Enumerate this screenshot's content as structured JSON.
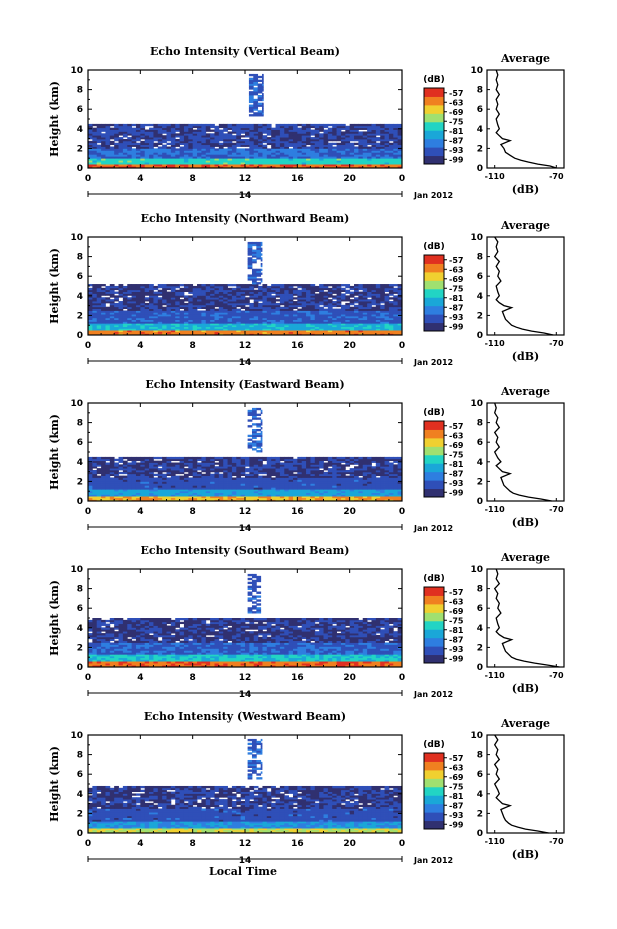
{
  "figure": {
    "xlabel": "Local Time",
    "date_label": "Jan 2012",
    "day_label": "14",
    "colorbar_unit": "(dB)",
    "average_title": "Average",
    "average_xlabel": "(dB)"
  },
  "chart_data": [
    {
      "type": "heatmap",
      "title": "Echo Intensity (Vertical Beam)",
      "xlabel": "Local Time",
      "ylabel": "Height (km)",
      "x_ticks": [
        "0",
        "4",
        "8",
        "12",
        "16",
        "20",
        "0"
      ],
      "xlim": [
        0,
        24
      ],
      "y_ticks": [
        "0",
        "2",
        "4",
        "6",
        "8",
        "10"
      ],
      "ylim": [
        0,
        10
      ],
      "colorbar": {
        "unit": "(dB)",
        "ticks": [
          "-57",
          "-63",
          "-69",
          "-75",
          "-81",
          "-87",
          "-93",
          "-99"
        ],
        "range": [
          -102,
          -54
        ]
      },
      "colors": [
        "#303070",
        "#2f4fb8",
        "#2e7ee0",
        "#1aa7d8",
        "#22d4c4",
        "#a0e070",
        "#f0d030",
        "#f08020",
        "#e03020"
      ],
      "field_summary": [
        {
          "height_km": [
            0.0,
            0.4
          ],
          "db": -60
        },
        {
          "height_km": [
            0.4,
            1.0
          ],
          "db": -78
        },
        {
          "height_km": [
            1.0,
            2.0
          ],
          "db": -91
        },
        {
          "height_km": [
            2.0,
            4.5
          ],
          "db": -96
        },
        {
          "height_km": [
            5.3,
            9.6
          ],
          "hours": [
            12.3,
            13.4
          ],
          "db": -93
        }
      ],
      "average": {
        "title": "Average",
        "xlabel": "(dB)",
        "x_ticks": [
          "-110",
          "-70"
        ],
        "xlim": [
          -115,
          -65
        ],
        "y_ticks": [
          "0",
          "2",
          "4",
          "6",
          "8",
          "10"
        ],
        "ylim": [
          0,
          10
        ],
        "profile": {
          "height": [
            0,
            0.2,
            0.4,
            0.6,
            0.8,
            1.0,
            1.3,
            1.6,
            2.0,
            2.4,
            2.8,
            3.0,
            3.3,
            3.6,
            4.0,
            4.4,
            5.0,
            5.5,
            6.0,
            6.5,
            7.0,
            7.5,
            8.0,
            8.5,
            9.0,
            9.5,
            10
          ],
          "db": [
            -70,
            -74,
            -82,
            -88,
            -93,
            -97,
            -100,
            -103,
            -104,
            -106,
            -100,
            -105,
            -107,
            -109,
            -107,
            -108,
            -109,
            -107,
            -109,
            -108,
            -109,
            -107,
            -109,
            -108,
            -109,
            -108,
            -109
          ]
        }
      }
    },
    {
      "type": "heatmap",
      "title": "Echo Intensity (Northward Beam)",
      "xlabel": "Local Time",
      "ylabel": "Height (km)",
      "x_ticks": [
        "0",
        "4",
        "8",
        "12",
        "16",
        "20",
        "0"
      ],
      "xlim": [
        0,
        24
      ],
      "y_ticks": [
        "0",
        "2",
        "4",
        "6",
        "8",
        "10"
      ],
      "ylim": [
        0,
        10
      ],
      "colorbar": {
        "unit": "(dB)",
        "ticks": [
          "-57",
          "-63",
          "-69",
          "-75",
          "-81",
          "-87",
          "-93",
          "-99"
        ],
        "range": [
          -102,
          -54
        ]
      },
      "colors": [
        "#303070",
        "#2f4fb8",
        "#2e7ee0",
        "#1aa7d8",
        "#22d4c4",
        "#a0e070",
        "#f0d030",
        "#f08020",
        "#e03020"
      ],
      "field_summary": [
        {
          "height_km": [
            0.0,
            0.5
          ],
          "db": -62
        },
        {
          "height_km": [
            0.5,
            1.2
          ],
          "db": -82
        },
        {
          "height_km": [
            1.2,
            2.5
          ],
          "db": -93
        },
        {
          "height_km": [
            2.5,
            5.2
          ],
          "db": -97
        },
        {
          "height_km": [
            5.2,
            9.5
          ],
          "hours": [
            12.2,
            13.3
          ],
          "db": -92
        }
      ],
      "average": {
        "title": "Average",
        "xlabel": "(dB)",
        "x_ticks": [
          "-110",
          "-70"
        ],
        "xlim": [
          -115,
          -65
        ],
        "y_ticks": [
          "0",
          "2",
          "4",
          "6",
          "8",
          "10"
        ],
        "ylim": [
          0,
          10
        ],
        "profile": {
          "height": [
            0,
            0.2,
            0.4,
            0.6,
            0.8,
            1.0,
            1.3,
            1.6,
            2.0,
            2.4,
            2.8,
            3.0,
            3.3,
            3.6,
            4.0,
            4.4,
            5.0,
            5.5,
            6.0,
            6.5,
            7.0,
            7.5,
            8.0,
            8.5,
            9.0,
            9.5,
            10
          ],
          "db": [
            -72,
            -78,
            -86,
            -92,
            -96,
            -99,
            -101,
            -103,
            -104,
            -105,
            -99,
            -104,
            -107,
            -109,
            -107,
            -108,
            -109,
            -106,
            -108,
            -107,
            -109,
            -107,
            -110,
            -108,
            -109,
            -108,
            -110
          ]
        }
      }
    },
    {
      "type": "heatmap",
      "title": "Echo Intensity (Eastward Beam)",
      "xlabel": "Local Time",
      "ylabel": "Height (km)",
      "x_ticks": [
        "0",
        "4",
        "8",
        "12",
        "16",
        "20",
        "0"
      ],
      "xlim": [
        0,
        24
      ],
      "y_ticks": [
        "0",
        "2",
        "4",
        "6",
        "8",
        "10"
      ],
      "ylim": [
        0,
        10
      ],
      "colorbar": {
        "unit": "(dB)",
        "ticks": [
          "-57",
          "-63",
          "-69",
          "-75",
          "-81",
          "-87",
          "-93",
          "-99"
        ],
        "range": [
          -102,
          -54
        ]
      },
      "colors": [
        "#303070",
        "#2f4fb8",
        "#2e7ee0",
        "#1aa7d8",
        "#22d4c4",
        "#a0e070",
        "#f0d030",
        "#f08020",
        "#e03020"
      ],
      "field_summary": [
        {
          "height_km": [
            0.0,
            0.5
          ],
          "db": -65
        },
        {
          "height_km": [
            0.5,
            1.2
          ],
          "db": -84
        },
        {
          "height_km": [
            1.2,
            2.4
          ],
          "db": -94
        },
        {
          "height_km": [
            2.4,
            4.5
          ],
          "db": -97
        },
        {
          "height_km": [
            5.0,
            9.5
          ],
          "hours": [
            12.2,
            13.3
          ],
          "db": -92
        }
      ],
      "average": {
        "title": "Average",
        "xlabel": "(dB)",
        "x_ticks": [
          "-110",
          "-70"
        ],
        "xlim": [
          -115,
          -65
        ],
        "y_ticks": [
          "0",
          "2",
          "4",
          "6",
          "8",
          "10"
        ],
        "ylim": [
          0,
          10
        ],
        "profile": {
          "height": [
            0,
            0.2,
            0.4,
            0.6,
            0.8,
            1.0,
            1.3,
            1.6,
            2.0,
            2.4,
            2.8,
            3.0,
            3.3,
            3.6,
            4.0,
            4.4,
            5.0,
            5.5,
            6.0,
            6.5,
            7.0,
            7.5,
            8.0,
            8.5,
            9.0,
            9.5,
            10
          ],
          "db": [
            -73,
            -80,
            -88,
            -94,
            -98,
            -100,
            -102,
            -104,
            -105,
            -106,
            -100,
            -105,
            -107,
            -109,
            -106,
            -108,
            -110,
            -107,
            -109,
            -108,
            -110,
            -107,
            -109,
            -108,
            -110,
            -109,
            -110
          ]
        }
      }
    },
    {
      "type": "heatmap",
      "title": "Echo Intensity (Southward Beam)",
      "xlabel": "Local Time",
      "ylabel": "Height (km)",
      "x_ticks": [
        "0",
        "4",
        "8",
        "12",
        "16",
        "20",
        "0"
      ],
      "xlim": [
        0,
        24
      ],
      "y_ticks": [
        "0",
        "2",
        "4",
        "6",
        "8",
        "10"
      ],
      "ylim": [
        0,
        10
      ],
      "colorbar": {
        "unit": "(dB)",
        "ticks": [
          "-57",
          "-63",
          "-69",
          "-75",
          "-81",
          "-87",
          "-93",
          "-99"
        ],
        "range": [
          -102,
          -54
        ]
      },
      "colors": [
        "#303070",
        "#2f4fb8",
        "#2e7ee0",
        "#1aa7d8",
        "#22d4c4",
        "#a0e070",
        "#f0d030",
        "#f08020",
        "#e03020"
      ],
      "field_summary": [
        {
          "height_km": [
            0.0,
            0.6
          ],
          "db": -60
        },
        {
          "height_km": [
            0.6,
            1.3
          ],
          "db": -80
        },
        {
          "height_km": [
            1.3,
            2.5
          ],
          "db": -92
        },
        {
          "height_km": [
            2.5,
            5.0
          ],
          "db": -97
        },
        {
          "height_km": [
            5.5,
            9.5
          ],
          "hours": [
            12.2,
            13.2
          ],
          "db": -93
        }
      ],
      "average": {
        "title": "Average",
        "xlabel": "(dB)",
        "x_ticks": [
          "-110",
          "-70"
        ],
        "xlim": [
          -115,
          -65
        ],
        "y_ticks": [
          "0",
          "2",
          "4",
          "6",
          "8",
          "10"
        ],
        "ylim": [
          0,
          10
        ],
        "profile": {
          "height": [
            0,
            0.2,
            0.4,
            0.6,
            0.8,
            1.0,
            1.3,
            1.6,
            2.0,
            2.4,
            2.8,
            3.0,
            3.3,
            3.6,
            4.0,
            4.4,
            5.0,
            5.5,
            6.0,
            6.5,
            7.0,
            7.5,
            8.0,
            8.5,
            9.0,
            9.5,
            10
          ],
          "db": [
            -68,
            -76,
            -84,
            -91,
            -96,
            -99,
            -101,
            -103,
            -104,
            -105,
            -99,
            -104,
            -107,
            -109,
            -107,
            -108,
            -109,
            -106,
            -108,
            -107,
            -109,
            -108,
            -110,
            -107,
            -109,
            -108,
            -109
          ]
        }
      }
    },
    {
      "type": "heatmap",
      "title": "Echo Intensity (Westward Beam)",
      "xlabel": "Local Time",
      "ylabel": "Height (km)",
      "x_ticks": [
        "0",
        "4",
        "8",
        "12",
        "16",
        "20",
        "0"
      ],
      "xlim": [
        0,
        24
      ],
      "y_ticks": [
        "0",
        "2",
        "4",
        "6",
        "8",
        "10"
      ],
      "ylim": [
        0,
        10
      ],
      "colorbar": {
        "unit": "(dB)",
        "ticks": [
          "-57",
          "-63",
          "-69",
          "-75",
          "-81",
          "-87",
          "-93",
          "-99"
        ],
        "range": [
          -102,
          -54
        ]
      },
      "colors": [
        "#303070",
        "#2f4fb8",
        "#2e7ee0",
        "#1aa7d8",
        "#22d4c4",
        "#a0e070",
        "#f0d030",
        "#f08020",
        "#e03020"
      ],
      "field_summary": [
        {
          "height_km": [
            0.0,
            0.5
          ],
          "db": -70
        },
        {
          "height_km": [
            0.5,
            1.2
          ],
          "db": -86
        },
        {
          "height_km": [
            1.2,
            2.5
          ],
          "db": -94
        },
        {
          "height_km": [
            2.5,
            4.8
          ],
          "db": -97
        },
        {
          "height_km": [
            5.5,
            9.6
          ],
          "hours": [
            12.2,
            13.3
          ],
          "db": -92
        }
      ],
      "average": {
        "title": "Average",
        "xlabel": "(dB)",
        "x_ticks": [
          "-110",
          "-70"
        ],
        "xlim": [
          -115,
          -65
        ],
        "y_ticks": [
          "0",
          "2",
          "4",
          "6",
          "8",
          "10"
        ],
        "ylim": [
          0,
          10
        ],
        "profile": {
          "height": [
            0,
            0.2,
            0.4,
            0.6,
            0.8,
            1.0,
            1.3,
            1.6,
            2.0,
            2.4,
            2.8,
            3.0,
            3.3,
            3.6,
            4.0,
            4.4,
            5.0,
            5.5,
            6.0,
            6.5,
            7.0,
            7.5,
            8.0,
            8.5,
            9.0,
            9.5,
            10
          ],
          "db": [
            -75,
            -82,
            -90,
            -95,
            -99,
            -101,
            -103,
            -104,
            -105,
            -106,
            -100,
            -105,
            -107,
            -109,
            -107,
            -108,
            -110,
            -107,
            -109,
            -108,
            -110,
            -107,
            -109,
            -108,
            -110,
            -108,
            -110
          ]
        }
      }
    }
  ]
}
